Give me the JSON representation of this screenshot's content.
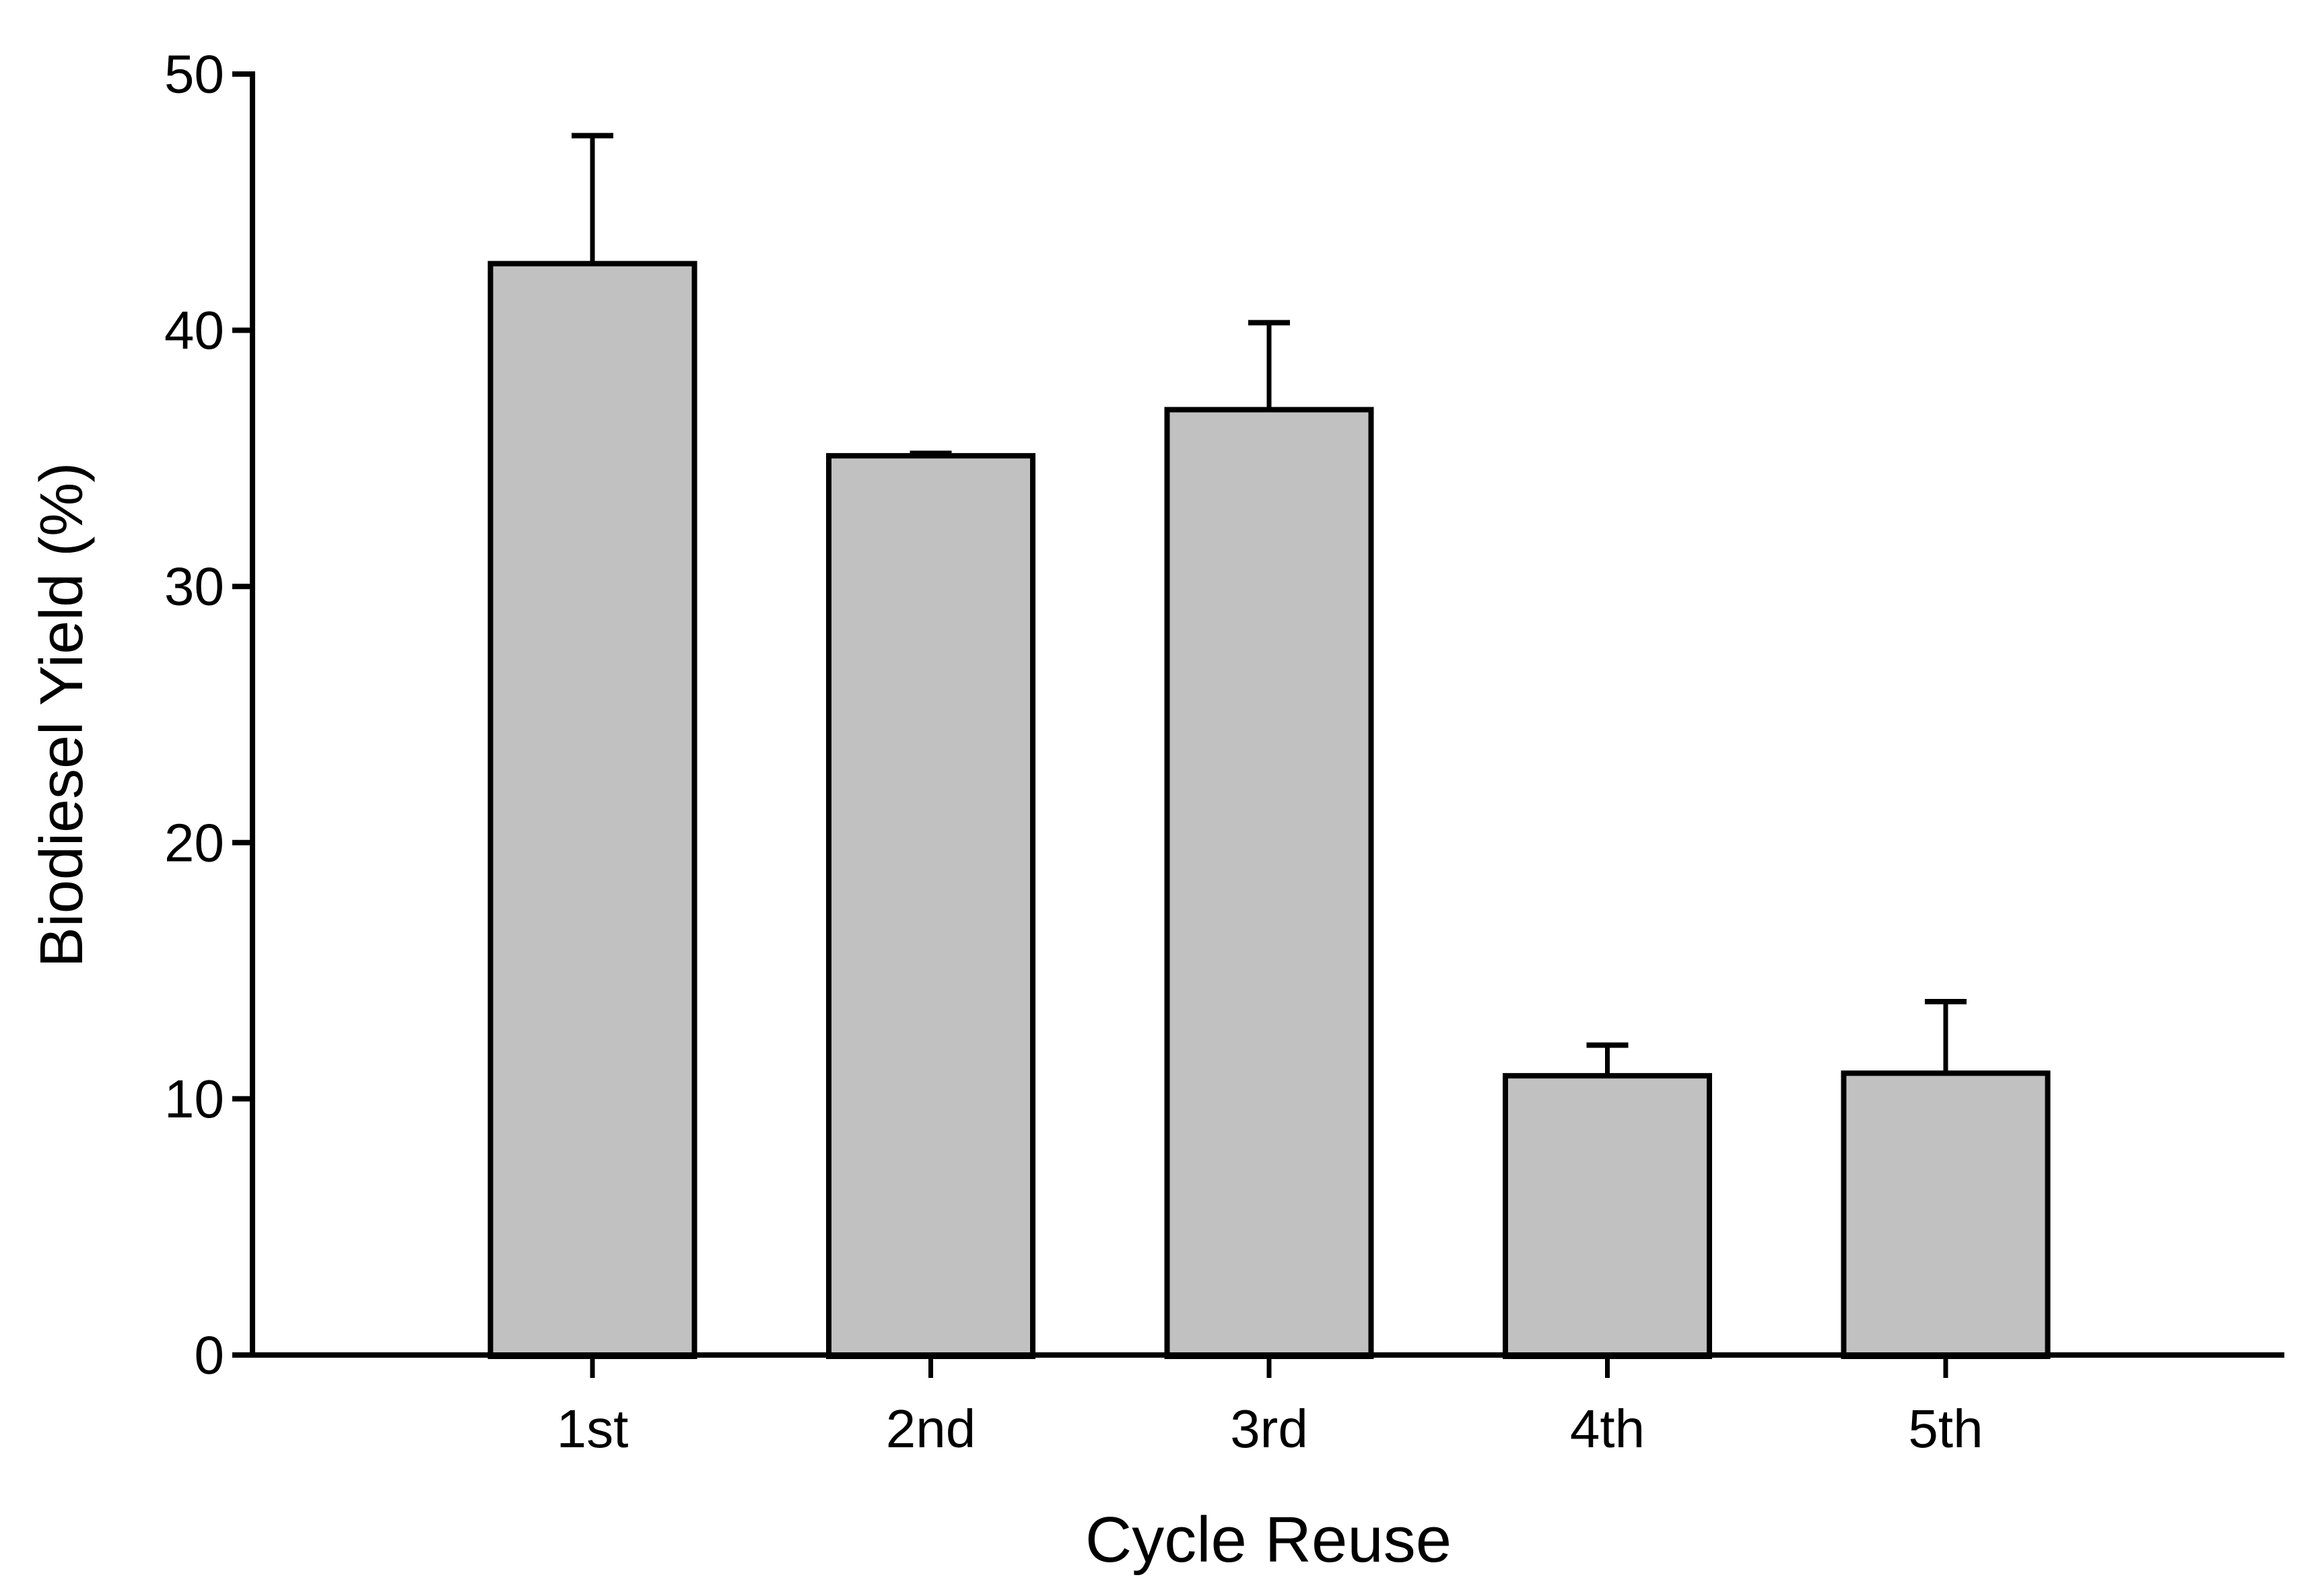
{
  "chart_data": {
    "type": "bar",
    "title": "",
    "categories": [
      "1st",
      "2nd",
      "3rd",
      "4th",
      "5th"
    ],
    "series": [
      {
        "name": "Biodiesel Yield",
        "values": [
          42.6,
          35.1,
          36.9,
          10.9,
          11.0
        ],
        "errors_plus": [
          5.1,
          0.2,
          3.5,
          1.3,
          2.9
        ]
      }
    ],
    "xlabel": "Cycle Reuse",
    "ylabel": "Biodiesel Yield (%)",
    "ylim": [
      0,
      50
    ],
    "yticks": [
      0,
      10,
      20,
      30,
      40,
      50
    ],
    "grid": false,
    "legend_position": "none",
    "colors": {
      "bar_fill": "#c1c1c1",
      "bar_stroke": "#000000",
      "axis": "#000000",
      "background": "#ffffff"
    }
  }
}
